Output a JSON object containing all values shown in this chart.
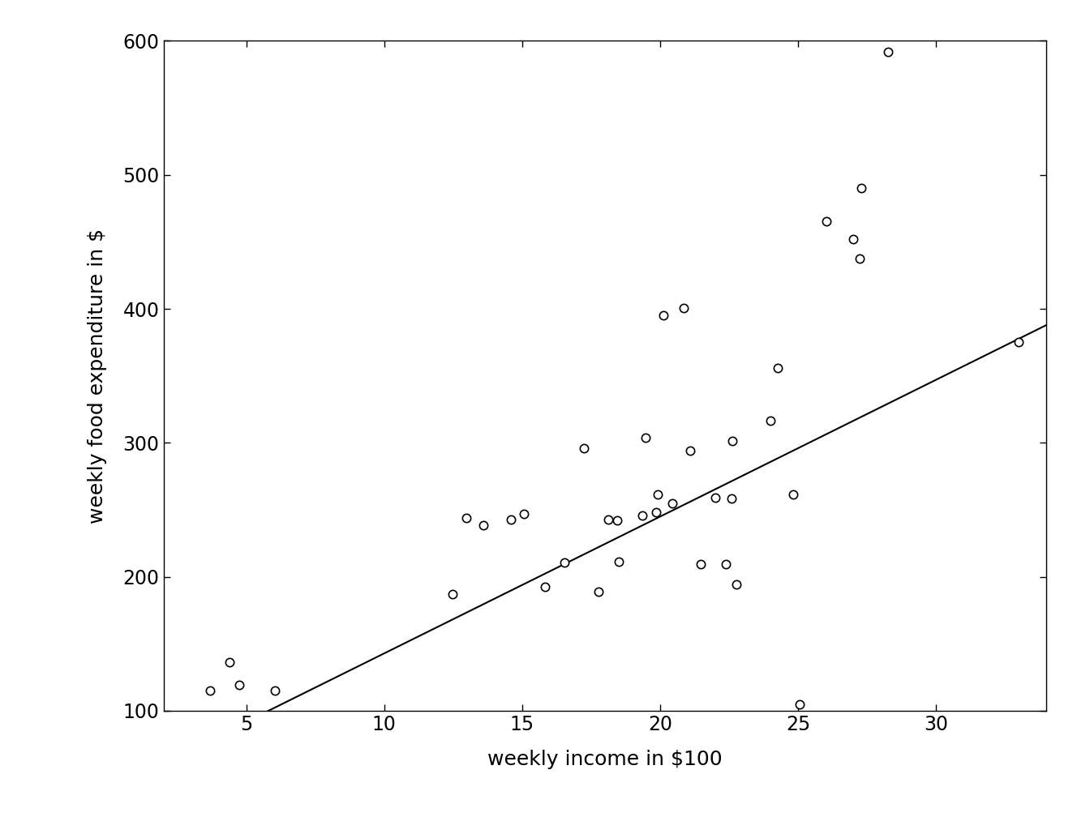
{
  "x": [
    3.69,
    4.39,
    4.75,
    6.03,
    12.47,
    12.98,
    13.58,
    14.58,
    15.05,
    15.82,
    16.53,
    17.23,
    17.76,
    18.12,
    18.43,
    18.5,
    19.35,
    19.48,
    19.84,
    19.9,
    20.13,
    20.45,
    20.86,
    21.09,
    21.47,
    22.01,
    22.38,
    22.59,
    22.62,
    22.75,
    24.01,
    24.26,
    24.83,
    25.05,
    26.02,
    27.0,
    27.22,
    27.29,
    28.25,
    33.0
  ],
  "y": [
    115.22,
    135.98,
    119.34,
    114.96,
    187.05,
    243.97,
    238.37,
    242.5,
    246.73,
    192.83,
    210.48,
    296.08,
    188.6,
    242.51,
    242.08,
    211.4,
    245.57,
    303.98,
    248.22,
    261.67,
    395.43,
    254.93,
    400.34,
    294.14,
    209.4,
    258.88,
    209.55,
    258.59,
    301.26,
    194.49,
    316.43,
    355.9,
    261.58,
    104.99,
    465.64,
    451.82,
    437.52,
    489.89,
    591.75,
    375.16
  ],
  "reg_intercept": 40.768,
  "reg_slope": 10.209,
  "reg_x_start": 2.0,
  "reg_x_end": 34.0,
  "xlim": [
    2,
    34
  ],
  "ylim": [
    100,
    600
  ],
  "xticks": [
    5,
    10,
    15,
    20,
    25,
    30
  ],
  "yticks": [
    100,
    200,
    300,
    400,
    500,
    600
  ],
  "xlabel": "weekly income in $100",
  "ylabel": "weekly food expenditure in $",
  "marker_size": 55,
  "marker_color": "white",
  "marker_edge_color": "black",
  "marker_lw": 1.2,
  "line_color": "black",
  "line_width": 1.5,
  "bg_color": "white",
  "axes_color": "black",
  "font_size": 18,
  "tick_labelsize": 17
}
